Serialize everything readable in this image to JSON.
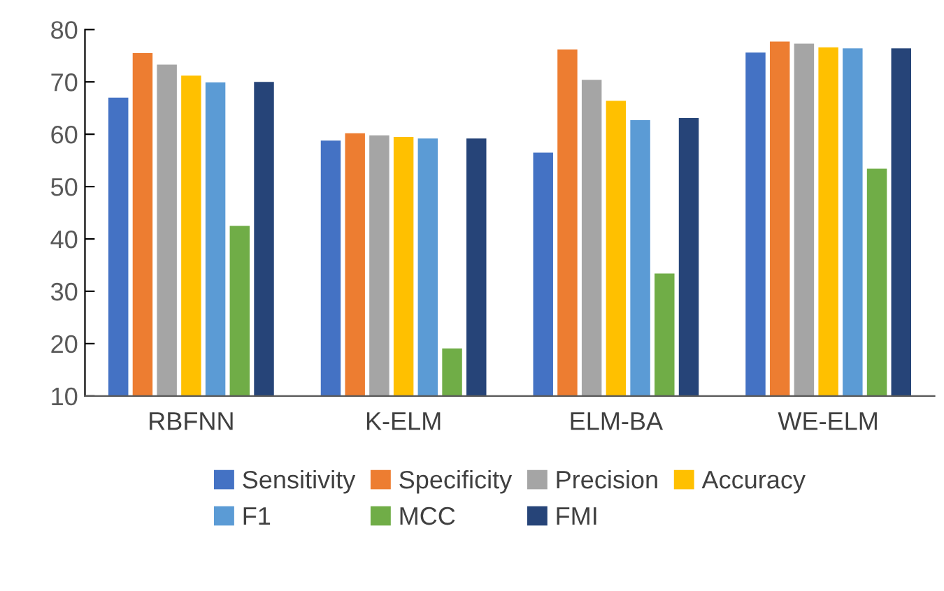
{
  "chart_data": {
    "type": "bar",
    "categories": [
      "RBFNN",
      "K-ELM",
      "ELM-BA",
      "WE-ELM"
    ],
    "series": [
      {
        "name": "Sensitivity",
        "color": "#4472c4",
        "values": [
          67.0,
          58.8,
          56.5,
          75.6
        ]
      },
      {
        "name": "Specificity",
        "color": "#ed7d31",
        "values": [
          75.5,
          60.2,
          76.2,
          77.7
        ]
      },
      {
        "name": "Precision",
        "color": "#a5a5a5",
        "values": [
          73.3,
          59.8,
          70.4,
          77.3
        ]
      },
      {
        "name": "Accuracy",
        "color": "#ffc000",
        "values": [
          71.2,
          59.5,
          66.4,
          76.6
        ]
      },
      {
        "name": "F1",
        "color": "#5b9bd5",
        "values": [
          69.9,
          59.2,
          62.7,
          76.4
        ]
      },
      {
        "name": "MCC",
        "color": "#70ad47",
        "values": [
          42.5,
          19.1,
          33.4,
          53.4
        ]
      },
      {
        "name": "FMI",
        "color": "#264478",
        "values": [
          70.0,
          59.2,
          63.1,
          76.4
        ]
      }
    ],
    "ylim": [
      10,
      80
    ],
    "yticks": [
      10,
      20,
      30,
      40,
      50,
      60,
      70,
      80
    ],
    "grid": false,
    "legend": "bottom"
  }
}
